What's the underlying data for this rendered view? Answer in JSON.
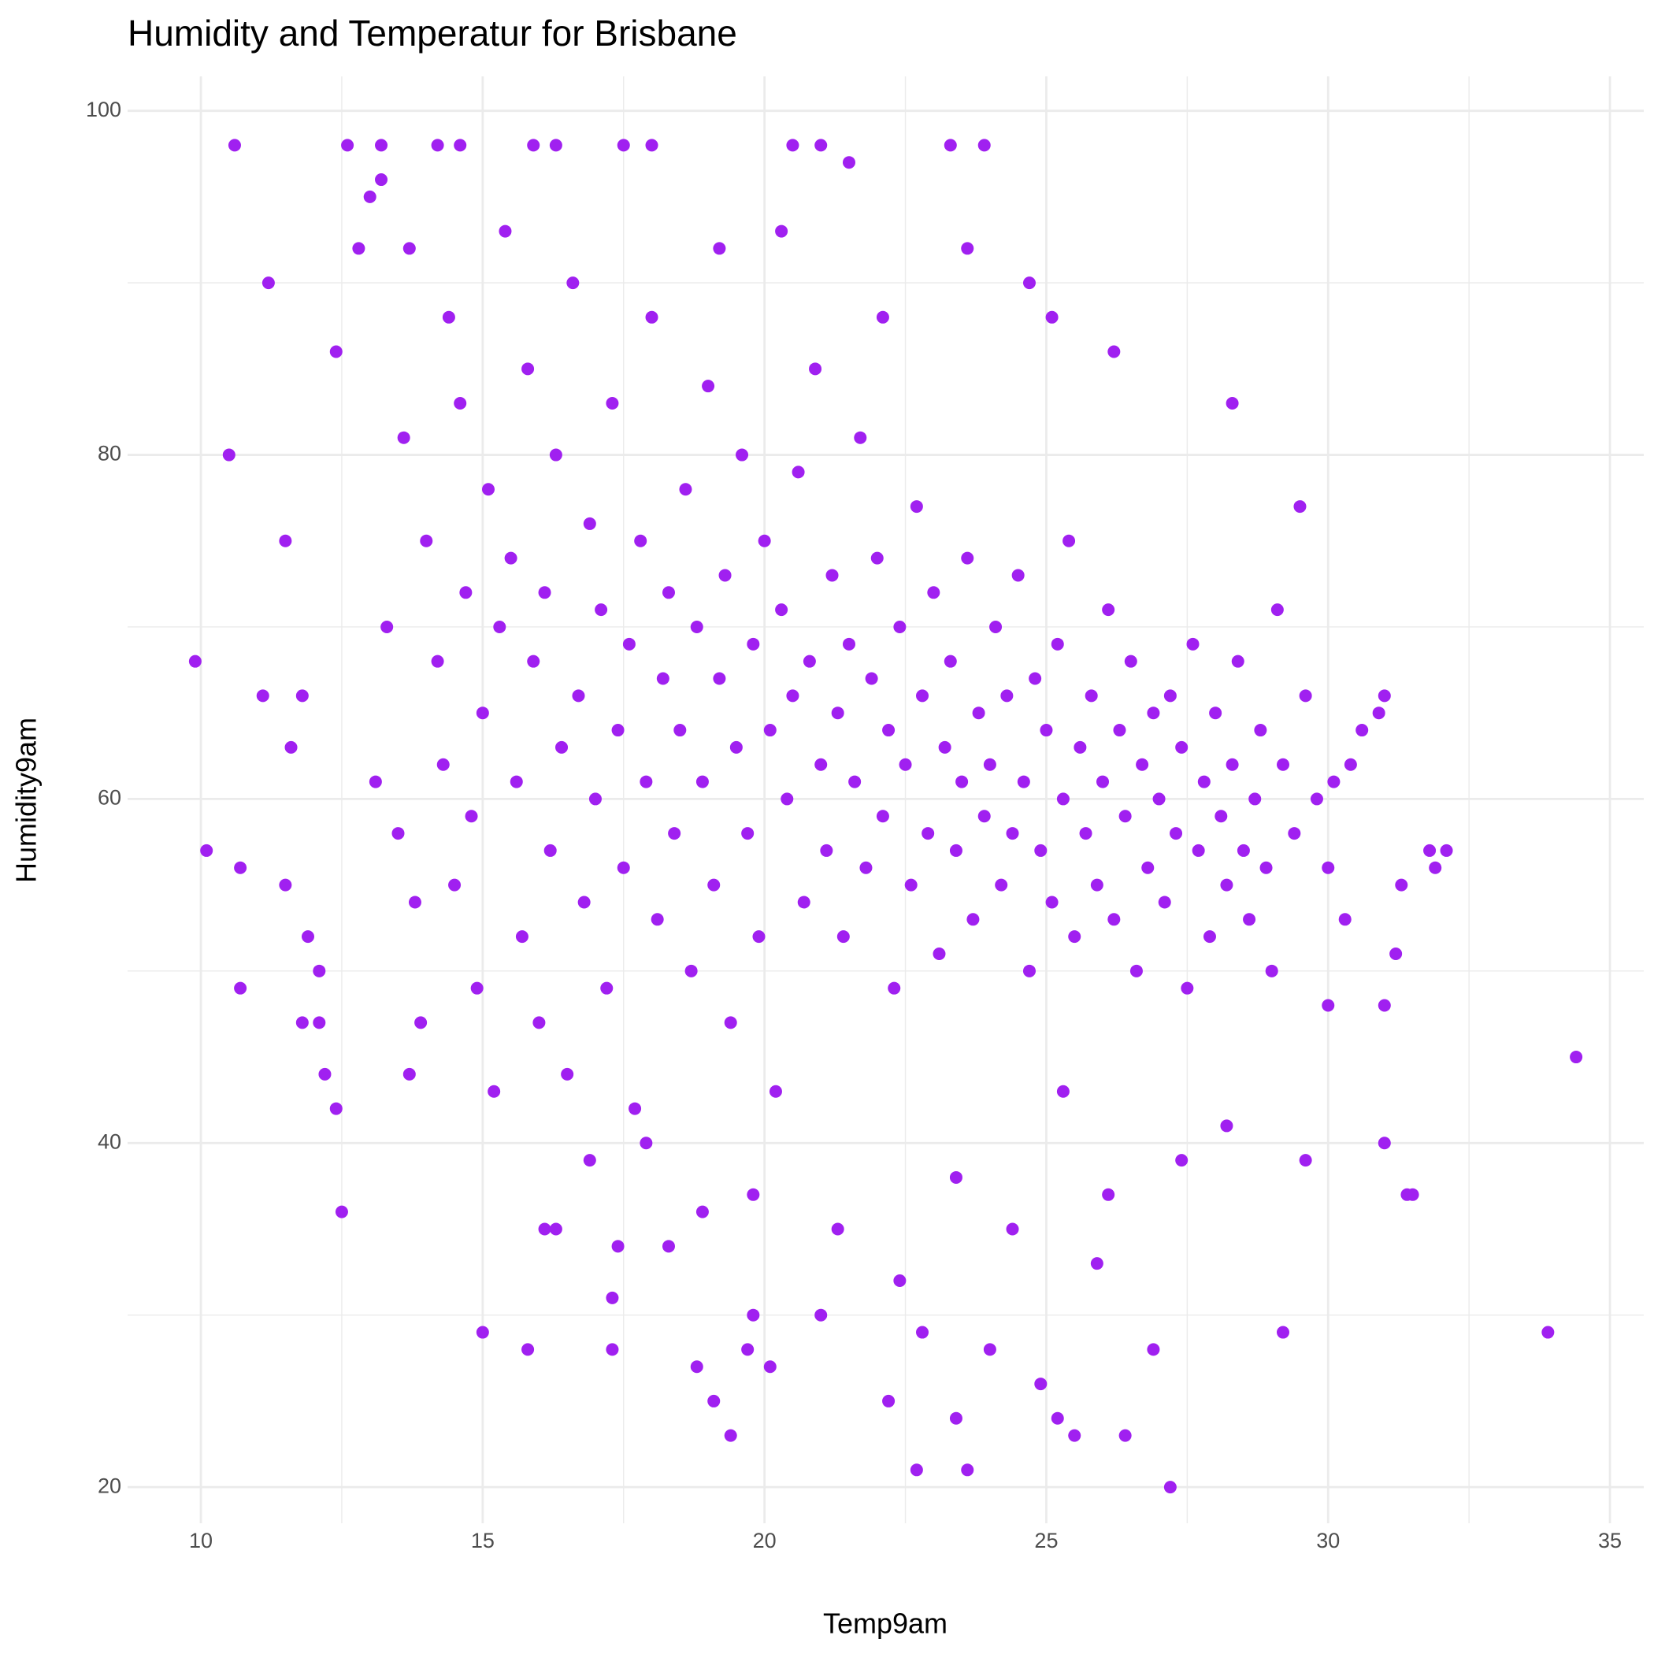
{
  "chart_data": {
    "type": "scatter",
    "title": "Humidity and Temperatur for Brisbane",
    "x_label": "Temp9am",
    "y_label": "Humidity9am",
    "color": "#a020f0",
    "grid": true,
    "xlim": [
      8.7,
      35.6
    ],
    "ylim": [
      17.9,
      102
    ],
    "xticks": [
      10,
      15,
      20,
      25,
      30,
      35
    ],
    "yticks": [
      20,
      40,
      60,
      80,
      100
    ],
    "xminor": [
      12.5,
      17.5,
      22.5,
      27.5,
      32.5
    ],
    "yminor": [
      30,
      50,
      70,
      90
    ],
    "x": [
      9.9,
      10.1,
      10.5,
      10.6,
      10.7,
      10.7,
      11.1,
      11.2,
      11.5,
      11.5,
      11.6,
      11.8,
      11.8,
      11.9,
      12.1,
      12.1,
      12.2,
      12.4,
      12.4,
      12.5,
      12.6,
      12.8,
      13,
      13.2,
      13.2,
      13.7,
      14.2,
      14.6,
      15,
      15.8,
      15.9,
      16.3,
      16.1,
      16.3,
      17.3,
      17.3,
      17.5,
      18,
      17.4,
      18.3,
      18.8,
      19.1,
      19.4,
      19.7,
      19.8,
      20.1,
      20.5,
      21,
      21.5,
      22.2,
      22.7,
      22.8,
      23.4,
      23.6,
      23.3,
      23.9,
      24,
      24.9,
      25.2,
      25.5,
      26.4,
      26.9,
      27.2,
      28.3,
      29.2,
      33.9,
      34.4,
      32.1,
      31.9,
      31.4,
      31.5,
      31,
      31.8,
      29.5,
      31.2,
      31,
      31.3,
      13.1,
      13.3,
      13.5,
      13.6,
      13.8,
      13.9,
      14.0,
      14.2,
      14.3,
      14.5,
      14.6,
      14.7,
      14.9,
      15.0,
      15.1,
      15.2,
      15.3,
      14.4,
      13.7,
      14.8,
      15.5,
      15.6,
      15.7,
      15.8,
      15.9,
      16.0,
      16.1,
      16.2,
      16.3,
      16.4,
      16.5,
      16.6,
      16.7,
      16.8,
      16.9,
      17.0,
      17.1,
      17.2,
      17.3,
      17.4,
      17.5,
      17.6,
      17.7,
      17.8,
      17.9,
      18.0,
      18.1,
      18.2,
      18.3,
      18.4,
      15.4,
      16.9,
      17.9,
      18.5,
      18.6,
      18.7,
      18.8,
      18.9,
      19.0,
      19.1,
      19.2,
      19.3,
      19.4,
      19.5,
      19.6,
      19.7,
      19.8,
      19.9,
      20.0,
      20.1,
      20.2,
      20.3,
      20.4,
      20.5,
      20.6,
      20.7,
      20.8,
      20.9,
      21.0,
      19.2,
      20.3,
      18.9,
      19.8,
      21.1,
      21.2,
      21.3,
      21.4,
      21.5,
      21.6,
      21.7,
      21.8,
      21.9,
      22.0,
      22.1,
      22.2,
      22.3,
      22.4,
      22.5,
      22.6,
      22.7,
      22.8,
      22.9,
      23.0,
      23.1,
      23.2,
      23.3,
      23.4,
      23.5,
      23.6,
      23.7,
      23.8,
      23.9,
      22.1,
      23.6,
      21.3,
      22.4,
      23.4,
      21.0,
      24.0,
      24.1,
      24.2,
      24.3,
      24.4,
      24.5,
      24.6,
      24.7,
      24.8,
      24.9,
      25.0,
      25.1,
      25.2,
      25.3,
      25.4,
      25.5,
      25.6,
      25.7,
      25.8,
      25.9,
      26.0,
      26.1,
      26.2,
      26.3,
      26.4,
      26.5,
      26.6,
      26.7,
      26.8,
      26.9,
      24.7,
      25.1,
      26.2,
      25.3,
      26.1,
      25.9,
      24.4,
      27.0,
      27.1,
      27.2,
      27.3,
      27.4,
      27.5,
      27.6,
      27.7,
      27.8,
      27.9,
      28.0,
      28.1,
      28.2,
      28.3,
      28.4,
      28.5,
      28.6,
      28.7,
      28.8,
      28.9,
      29.0,
      29.2,
      29.4,
      29.6,
      29.8,
      30.0,
      30.1,
      29.1,
      28.2,
      29.6,
      27.4,
      30.3,
      30.6,
      30.9,
      31.0,
      30.0,
      30.4
    ],
    "values": [
      68,
      57,
      80,
      98,
      56,
      49,
      66,
      90,
      75,
      55,
      63,
      66,
      47,
      52,
      47,
      50,
      44,
      86,
      42,
      36,
      98,
      92,
      95,
      98,
      96,
      92,
      98,
      98,
      29,
      28,
      98,
      98,
      35,
      35,
      28,
      31,
      98,
      98,
      34,
      34,
      27,
      25,
      23,
      28,
      30,
      27,
      98,
      98,
      97,
      25,
      21,
      29,
      24,
      21,
      98,
      98,
      28,
      26,
      24,
      23,
      23,
      28,
      20,
      83,
      29,
      29,
      45,
      57,
      56,
      37,
      37,
      40,
      57,
      77,
      51,
      48,
      55,
      61,
      70,
      58,
      81,
      54,
      47,
      75,
      68,
      62,
      55,
      83,
      72,
      49,
      65,
      78,
      43,
      70,
      88,
      44,
      59,
      74,
      61,
      52,
      85,
      68,
      47,
      72,
      57,
      80,
      63,
      44,
      90,
      66,
      54,
      76,
      60,
      71,
      49,
      83,
      64,
      56,
      69,
      42,
      75,
      61,
      88,
      53,
      67,
      72,
      58,
      93,
      39,
      40,
      64,
      78,
      50,
      70,
      61,
      84,
      55,
      67,
      73,
      47,
      63,
      80,
      58,
      69,
      52,
      75,
      64,
      43,
      71,
      60,
      66,
      79,
      54,
      68,
      85,
      62,
      92,
      93,
      36,
      37,
      57,
      73,
      65,
      52,
      69,
      61,
      81,
      56,
      67,
      74,
      59,
      64,
      49,
      70,
      62,
      55,
      77,
      66,
      58,
      72,
      51,
      63,
      68,
      57,
      61,
      74,
      53,
      65,
      59,
      88,
      92,
      35,
      32,
      38,
      30,
      62,
      70,
      55,
      66,
      58,
      73,
      61,
      50,
      67,
      57,
      64,
      54,
      69,
      60,
      75,
      52,
      63,
      58,
      66,
      55,
      61,
      71,
      53,
      64,
      59,
      68,
      50,
      62,
      56,
      65,
      90,
      88,
      86,
      43,
      37,
      33,
      35,
      60,
      54,
      66,
      58,
      63,
      49,
      69,
      57,
      61,
      52,
      65,
      59,
      55,
      62,
      68,
      57,
      53,
      60,
      64,
      56,
      50,
      62,
      58,
      66,
      60,
      56,
      61,
      71,
      41,
      39,
      39,
      53,
      64,
      65,
      66,
      48,
      62
    ]
  }
}
